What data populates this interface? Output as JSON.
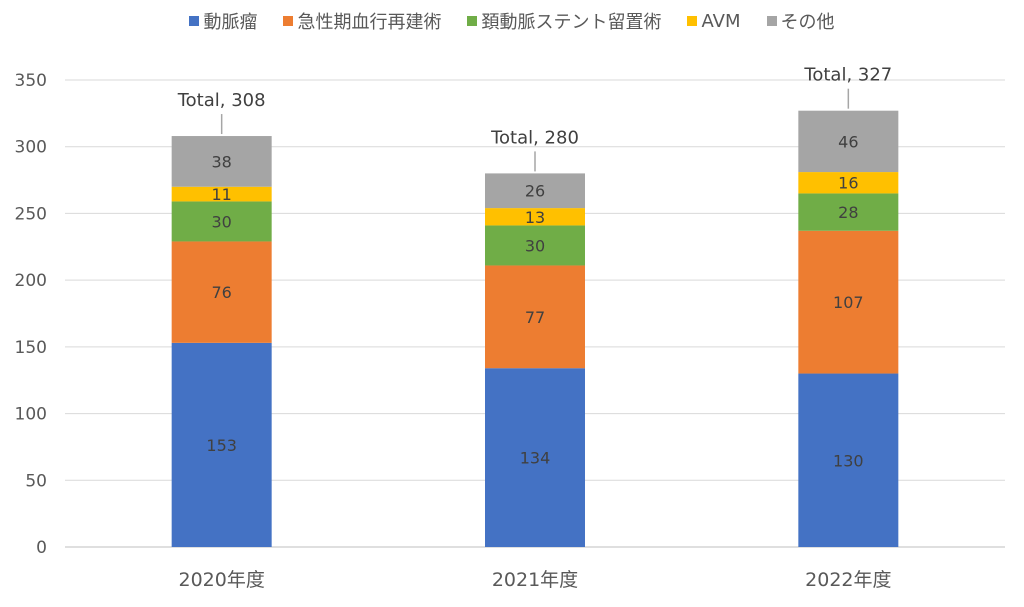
{
  "chart_data": {
    "type": "bar",
    "stacked": true,
    "categories": [
      "2020年度",
      "2021年度",
      "2022年度"
    ],
    "series": [
      {
        "name": "動脈瘤",
        "color": "#4472C4",
        "values": [
          153,
          134,
          130
        ]
      },
      {
        "name": "急性期血行再建術",
        "color": "#ED7D31",
        "values": [
          76,
          77,
          107
        ]
      },
      {
        "name": "頚動脈ステント留置術",
        "color": "#70AD47",
        "values": [
          30,
          30,
          28
        ]
      },
      {
        "name": "AVM",
        "color": "#FFC000",
        "values": [
          11,
          13,
          16
        ]
      },
      {
        "name": "その他",
        "color": "#A5A5A5",
        "values": [
          38,
          26,
          46
        ]
      }
    ],
    "totals": [
      "Total, 308",
      "Total, 280",
      "Total, 327"
    ],
    "ylim": [
      0,
      350
    ],
    "yticks": [
      0,
      50,
      100,
      150,
      200,
      250,
      300,
      350
    ],
    "grid": true,
    "legend": "top"
  }
}
